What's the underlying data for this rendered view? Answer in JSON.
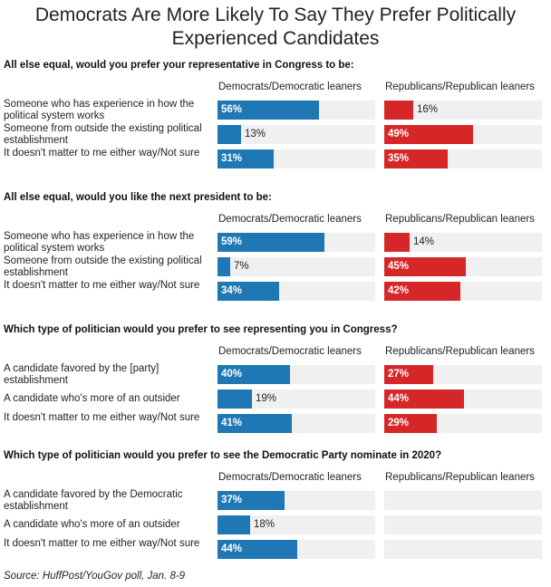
{
  "title": "Democrats Are More Likely To Say They Prefer Politically Experienced Candidates",
  "source": "Source: HuffPost/YouGov poll, Jan. 8-9",
  "colors": {
    "democrats": "#1f78b4",
    "republicans": "#d62728",
    "track": "#f0f0f0"
  },
  "chart_data": {
    "type": "bar",
    "orientation": "horizontal",
    "xlim": [
      0,
      100
    ],
    "value_format": "percent",
    "columns": [
      "Democrats/Democratic leaners",
      "Republicans/Republican leaners"
    ],
    "panels": [
      {
        "question": "All else equal, would you prefer your representative in Congress to be:",
        "categories": [
          "Someone who has experience in how the political system works",
          "Someone from outside the existing political establishment",
          "It doesn't matter to me either way/Not sure"
        ],
        "series": [
          {
            "name": "Democrats/Democratic leaners",
            "values": [
              56,
              13,
              31
            ]
          },
          {
            "name": "Republicans/Republican leaners",
            "values": [
              16,
              49,
              35
            ]
          }
        ]
      },
      {
        "question": "All else equal, would you like the next president to be:",
        "categories": [
          "Someone who has experience in how the political system works",
          "Someone from outside the existing political establishment",
          "It doesn't matter to me either way/Not sure"
        ],
        "series": [
          {
            "name": "Democrats/Democratic leaners",
            "values": [
              59,
              7,
              34
            ]
          },
          {
            "name": "Republicans/Republican leaners",
            "values": [
              14,
              45,
              42
            ]
          }
        ]
      },
      {
        "question": "Which type of politician would you prefer to see representing you in Congress?",
        "categories": [
          "A candidate favored by the [party] establishment",
          "A candidate who's more of an outsider",
          "It doesn't matter to me either way/Not sure"
        ],
        "series": [
          {
            "name": "Democrats/Democratic leaners",
            "values": [
              40,
              19,
              41
            ]
          },
          {
            "name": "Republicans/Republican leaners",
            "values": [
              27,
              44,
              29
            ]
          }
        ]
      },
      {
        "question": "Which type of politician would you prefer to see the Democratic Party nominate in 2020?",
        "categories": [
          "A candidate favored by the Democratic establishment",
          "A candidate who's more of an outsider",
          "It doesn't matter to me either way/Not sure"
        ],
        "series": [
          {
            "name": "Democrats/Democratic leaners",
            "values": [
              37,
              18,
              44
            ]
          },
          {
            "name": "Republicans/Republican leaners",
            "values": [
              null,
              null,
              null
            ]
          }
        ]
      }
    ]
  }
}
